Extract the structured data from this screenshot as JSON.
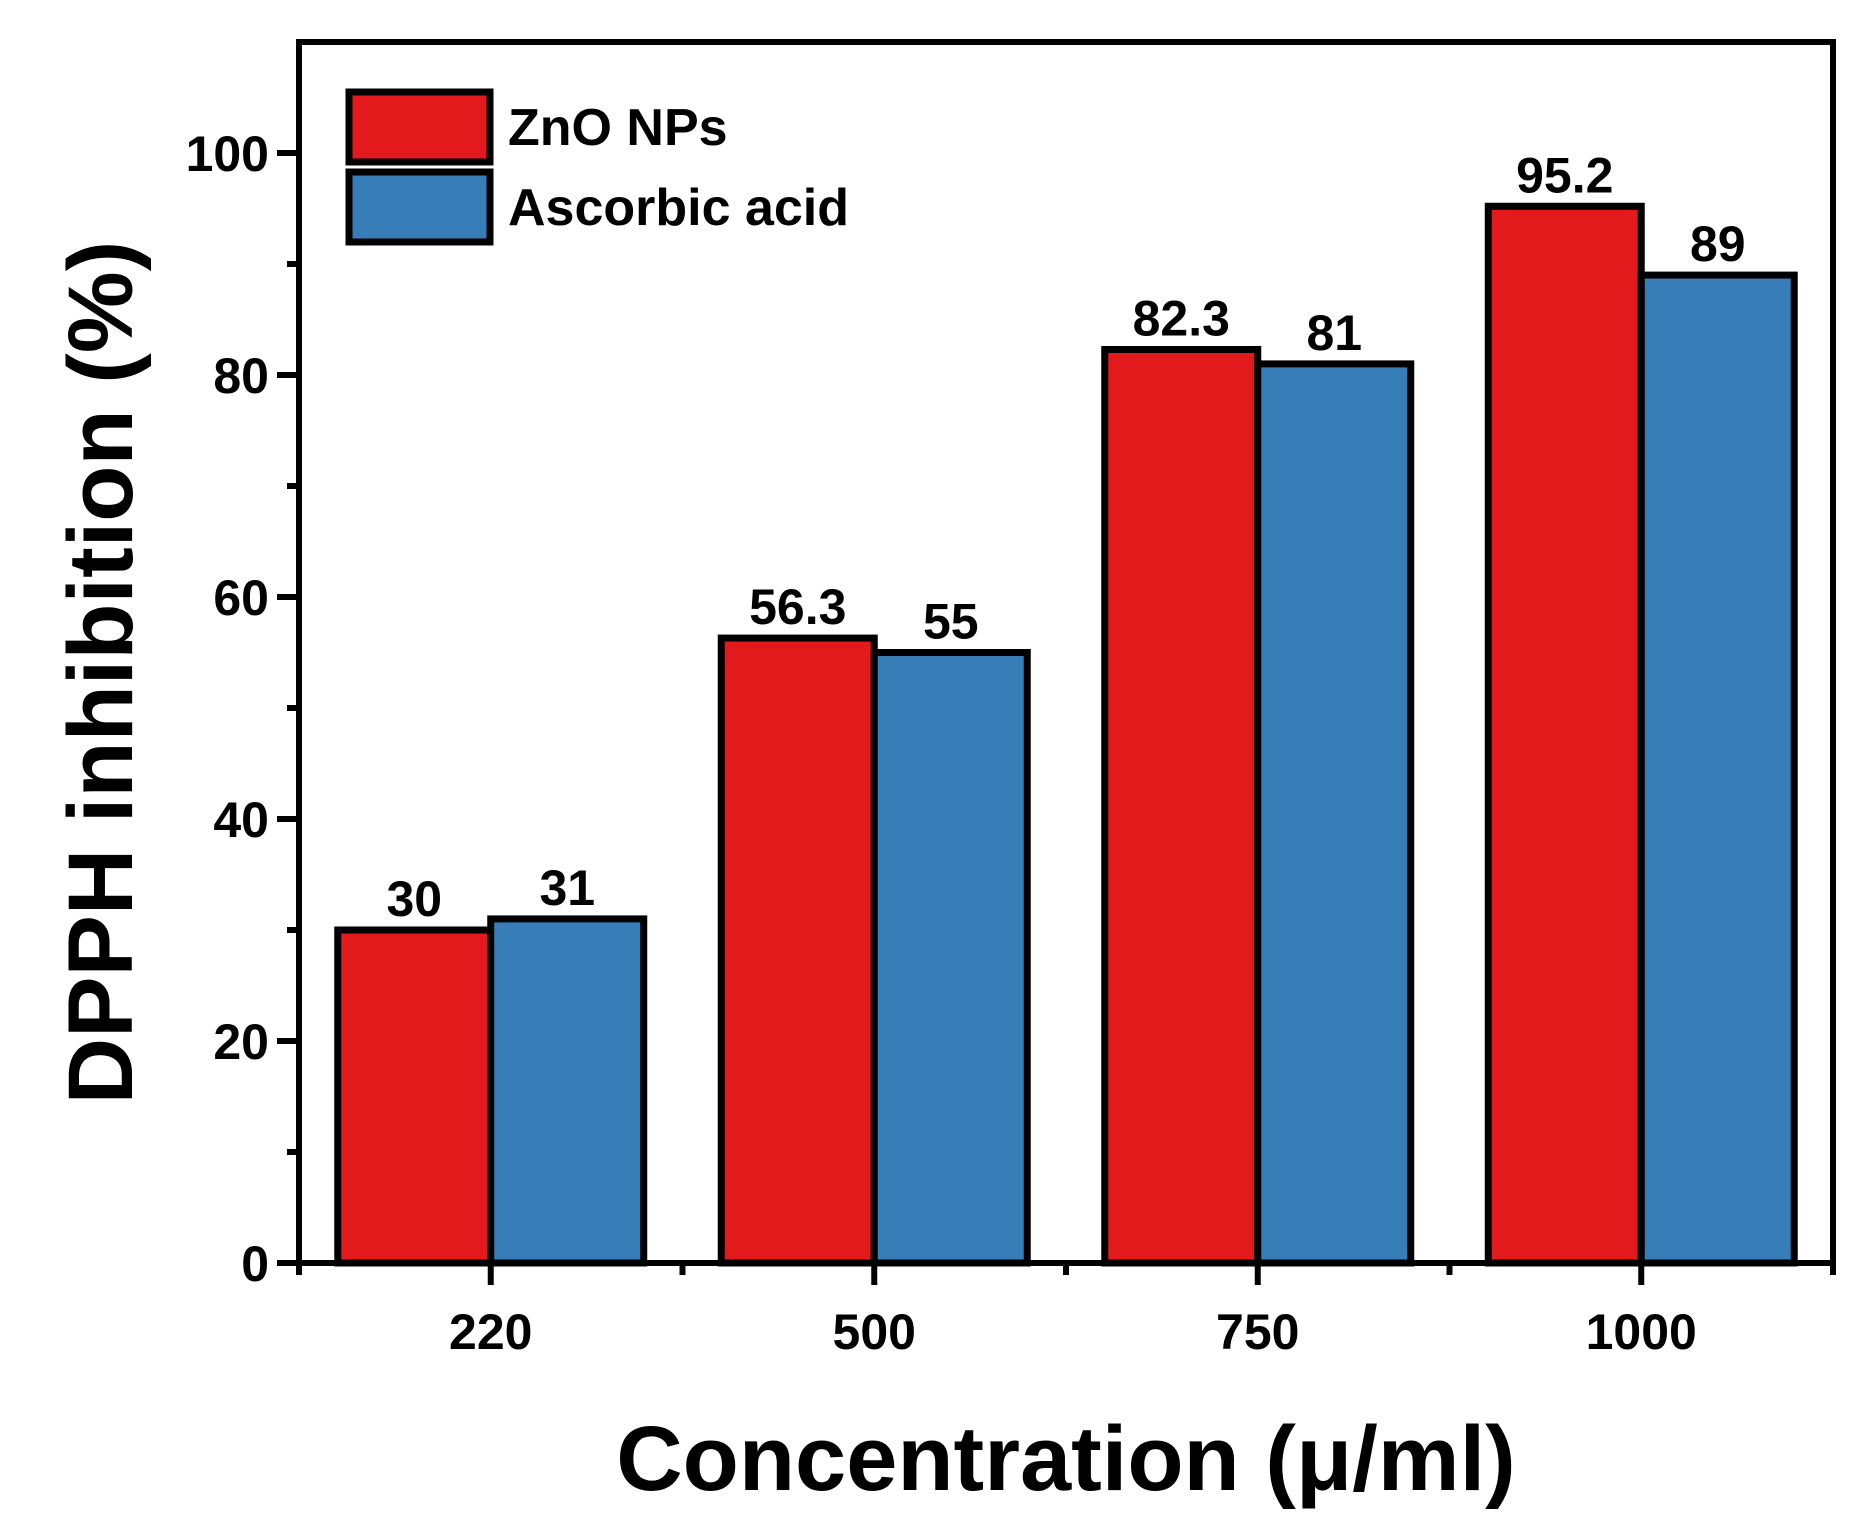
{
  "chart_data": {
    "type": "bar",
    "title": "",
    "xlabel": "Concentration (μ/ml)",
    "ylabel": "DPPH inhibition (%)",
    "categories": [
      "220",
      "500",
      "750",
      "1000"
    ],
    "series": [
      {
        "name": "ZnO NPs",
        "color": "#e31a1c",
        "values": [
          30,
          56.3,
          82.3,
          95.2
        ],
        "labels": [
          "30",
          "56.3",
          "82.3",
          "95.2"
        ]
      },
      {
        "name": "Ascorbic acid",
        "color": "#377eb8",
        "values": [
          31,
          55,
          81,
          89
        ],
        "labels": [
          "31",
          "55",
          "81",
          "89"
        ]
      }
    ],
    "ylim": [
      0,
      110
    ],
    "yticks": [
      0,
      20,
      40,
      60,
      80,
      100
    ],
    "ytick_labels": [
      "0",
      "20",
      "40",
      "60",
      "80",
      "100"
    ],
    "grid": false,
    "legend_position": "top-left"
  }
}
